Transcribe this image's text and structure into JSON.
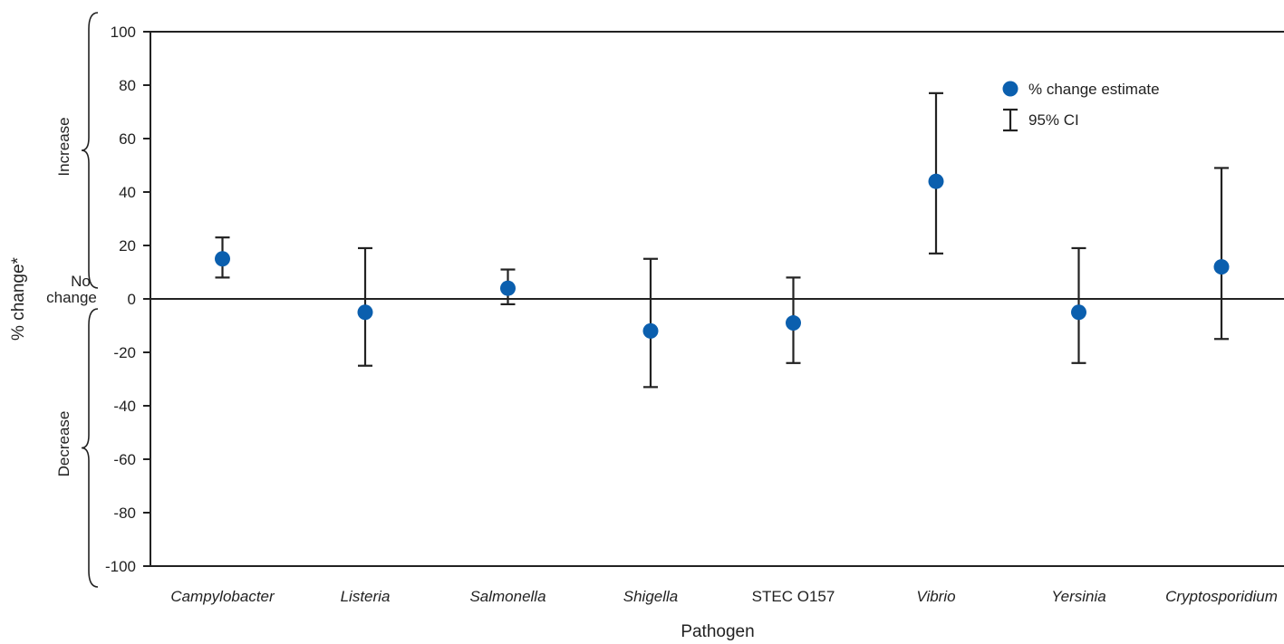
{
  "chart_data": {
    "type": "scatter",
    "xlabel": "Pathogen",
    "ylabel": "% change*",
    "ylim": [
      -100,
      100
    ],
    "yticks": [
      100,
      80,
      60,
      40,
      20,
      0,
      -20,
      -40,
      -60,
      -80,
      -100
    ],
    "categories": [
      "Campylobacter",
      "Listeria",
      "Salmonella",
      "Shigella",
      "STEC O157",
      "Vibrio",
      "Yersinia",
      "Cryptosporidium"
    ],
    "italic": [
      true,
      true,
      true,
      true,
      false,
      true,
      true,
      true
    ],
    "series": [
      {
        "name": "% change estimate",
        "values": [
          15,
          -5,
          4,
          -12,
          -9,
          44,
          -5,
          12
        ],
        "ci_low": [
          8,
          -25,
          -2,
          -33,
          -24,
          17,
          -24,
          -15
        ],
        "ci_high": [
          23,
          19,
          11,
          15,
          8,
          77,
          19,
          49
        ]
      }
    ],
    "legend": {
      "position": "top-right",
      "items": [
        "% change estimate",
        "95% CI"
      ]
    },
    "regions": {
      "increase": "Increase",
      "no_change_line1": "No",
      "no_change_line2": "change",
      "decrease": "Decrease"
    },
    "colors": {
      "point": "#0b5fae",
      "errorbar": "#222222",
      "axis": "#222222"
    }
  }
}
